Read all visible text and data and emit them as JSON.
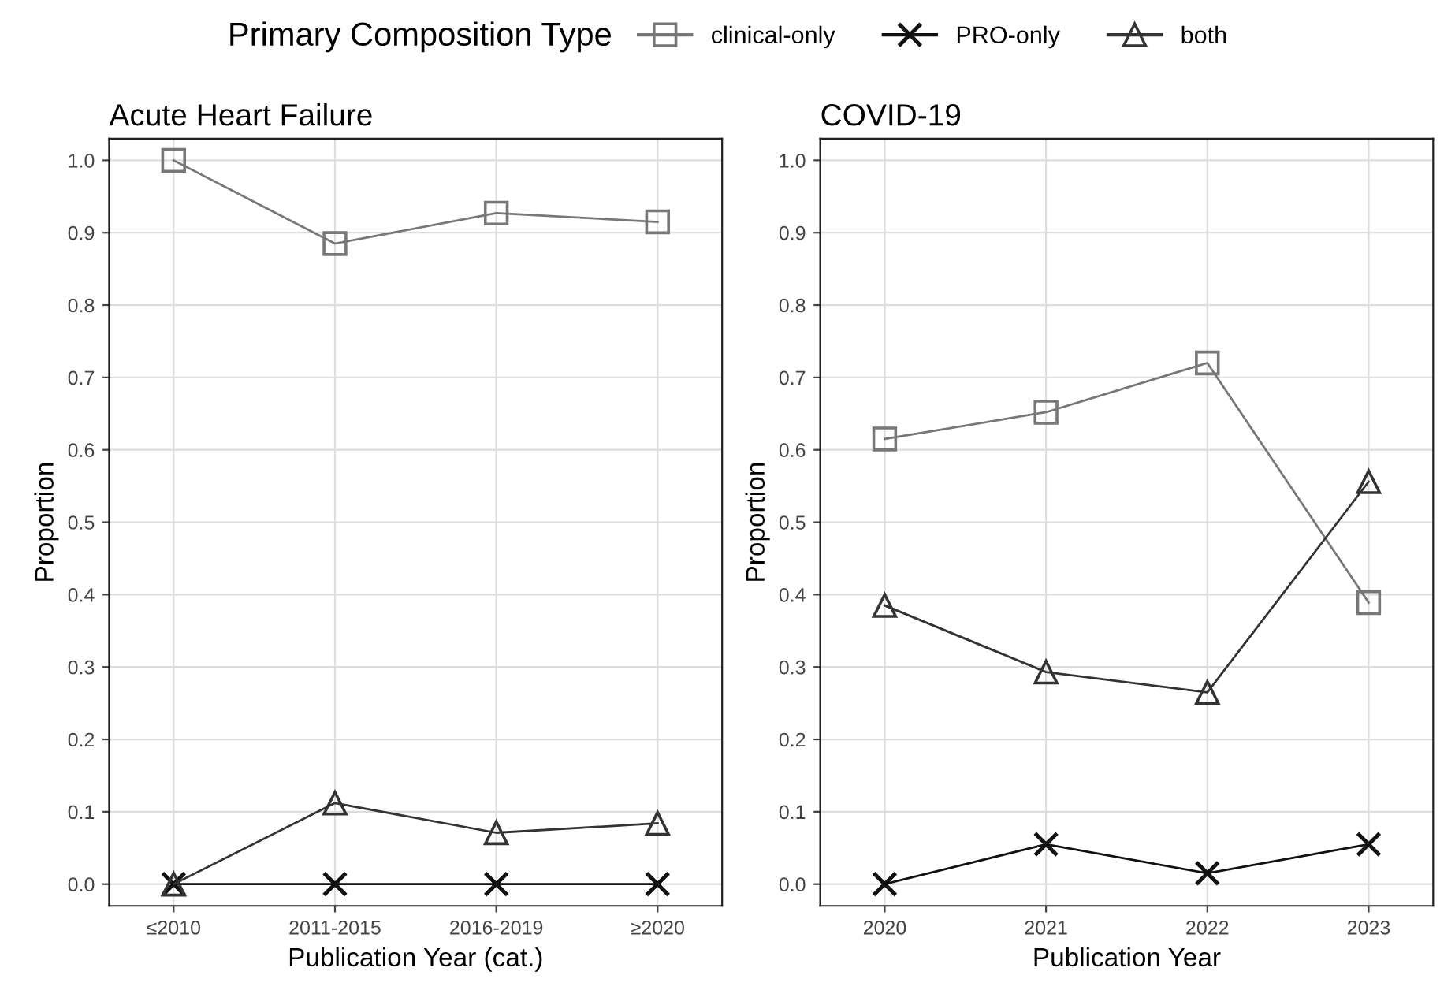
{
  "chart_data": [
    {
      "type": "line",
      "title": "Acute Heart Failure",
      "xlabel": "Publication Year (cat.)",
      "ylabel": "Proportion",
      "legend_title": "Primary Composition Type",
      "legend": "top",
      "grid": true,
      "categories": [
        "≤2010",
        "2011-2015",
        "2016-2019",
        "≥2020"
      ],
      "ylim": [
        -0.03,
        1.03
      ],
      "yticks": [
        {
          "value": 0,
          "label": "0.0"
        },
        {
          "value": 0.1,
          "label": "0.1"
        },
        {
          "value": 0.2,
          "label": "0.2"
        },
        {
          "value": 0.3,
          "label": "0.3"
        },
        {
          "value": 0.4,
          "label": "0.4"
        },
        {
          "value": 0.5,
          "label": "0.5"
        },
        {
          "value": 0.6,
          "label": "0.6"
        },
        {
          "value": 0.7,
          "label": "0.7"
        },
        {
          "value": 0.8,
          "label": "0.8"
        },
        {
          "value": 0.9,
          "label": "0.9"
        },
        {
          "value": 1,
          "label": "1.0"
        }
      ],
      "series": [
        {
          "name": "clinical-only",
          "color": "#777777",
          "marker": "square",
          "values": [
            1.0,
            0.885,
            0.927,
            0.915
          ]
        },
        {
          "name": "PRO-only",
          "color": "#111111",
          "marker": "cross",
          "values": [
            0,
            0,
            0,
            0
          ]
        },
        {
          "name": "both",
          "color": "#333333",
          "marker": "triangle",
          "values": [
            0,
            0.112,
            0.071,
            0.084
          ]
        }
      ]
    },
    {
      "type": "line",
      "title": "COVID-19",
      "xlabel": "Publication Year",
      "ylabel": "Proportion",
      "grid": true,
      "categories": [
        "2020",
        "2021",
        "2022",
        "2023"
      ],
      "ylim": [
        -0.03,
        1.03
      ],
      "yticks": [
        {
          "value": 0,
          "label": "0.0"
        },
        {
          "value": 0.1,
          "label": "0.1"
        },
        {
          "value": 0.2,
          "label": "0.2"
        },
        {
          "value": 0.3,
          "label": "0.3"
        },
        {
          "value": 0.4,
          "label": "0.4"
        },
        {
          "value": 0.5,
          "label": "0.5"
        },
        {
          "value": 0.6,
          "label": "0.6"
        },
        {
          "value": 0.7,
          "label": "0.7"
        },
        {
          "value": 0.8,
          "label": "0.8"
        },
        {
          "value": 0.9,
          "label": "0.9"
        },
        {
          "value": 1,
          "label": "1.0"
        }
      ],
      "series": [
        {
          "color": "#777777",
          "marker": "square",
          "values": [
            0.615,
            0.652,
            0.72,
            0.389
          ]
        },
        {
          "color": "#111111",
          "marker": "cross",
          "values": [
            0,
            0.055,
            0.015,
            0.055
          ]
        },
        {
          "color": "#333333",
          "marker": "triangle",
          "values": [
            0.385,
            0.293,
            0.265,
            0.556
          ]
        }
      ]
    }
  ]
}
